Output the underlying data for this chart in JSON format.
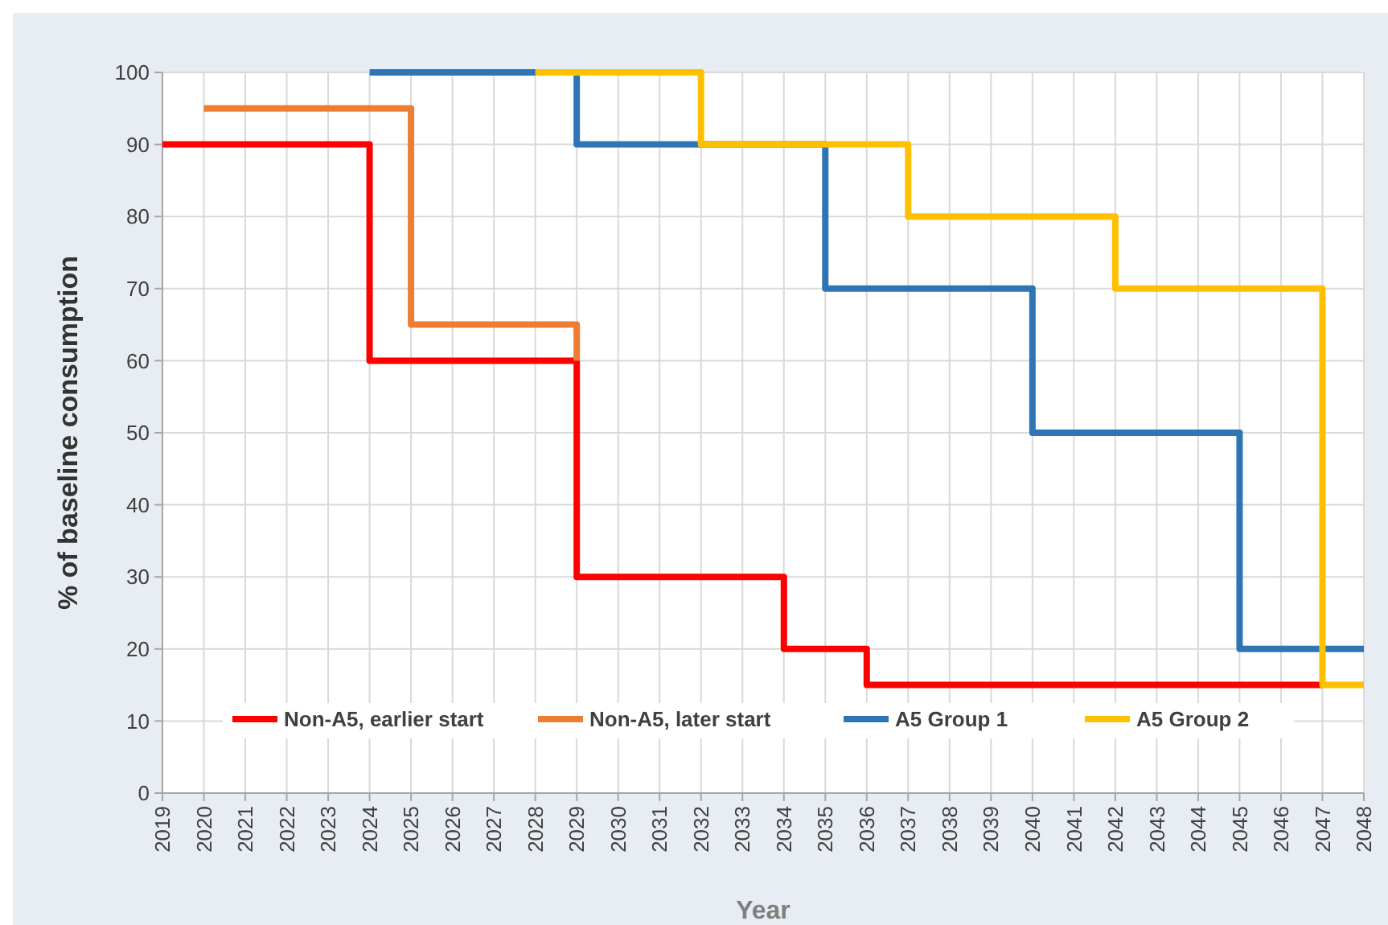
{
  "chart_data": {
    "type": "step",
    "xlabel": "Year",
    "ylabel": "% of baseline consumption",
    "xlim": [
      2019,
      2048
    ],
    "xticks": [
      2019,
      2020,
      2021,
      2022,
      2023,
      2024,
      2025,
      2026,
      2027,
      2028,
      2029,
      2030,
      2031,
      2032,
      2033,
      2034,
      2035,
      2036,
      2037,
      2038,
      2039,
      2040,
      2041,
      2042,
      2043,
      2044,
      2045,
      2046,
      2047,
      2048
    ],
    "ylim": [
      0,
      100
    ],
    "yticks": [
      0,
      10,
      20,
      30,
      40,
      50,
      60,
      70,
      80,
      90,
      100
    ],
    "grid": true,
    "legend": "bottom",
    "marker": "none",
    "line_style": "solid",
    "series": [
      {
        "name": "Non-A5, earlier start",
        "color": "#ff0000",
        "x": [
          2019,
          2024,
          2029,
          2034,
          2036,
          2047
        ],
        "values": [
          90,
          60,
          30,
          20,
          15,
          15
        ]
      },
      {
        "name": "Non-A5, later start",
        "color": "#ed7d31",
        "x": [
          2020,
          2025,
          2029
        ],
        "values": [
          95,
          65,
          60
        ]
      },
      {
        "name": "A5 Group 1",
        "color": "#2e75b6",
        "x": [
          2024,
          2029,
          2035,
          2040,
          2045,
          2048
        ],
        "values": [
          100,
          90,
          70,
          50,
          20,
          20
        ]
      },
      {
        "name": "A5 Group 2",
        "color": "#ffc000",
        "x": [
          2028,
          2032,
          2037,
          2042,
          2047,
          2048
        ],
        "values": [
          100,
          90,
          80,
          70,
          15,
          15
        ]
      }
    ]
  }
}
